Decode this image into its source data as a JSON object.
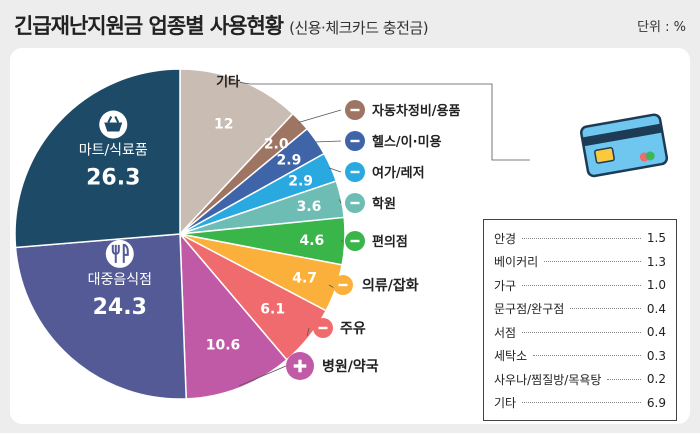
{
  "header": {
    "title": "긴급재난지원금 업종별 사용현황",
    "subtitle": "(신용·체크카드 충전금)",
    "unit": "단위 : %"
  },
  "colors": {
    "마트/식료품": "#1d4b67",
    "대중음식점": "#535a96",
    "병원/약국": "#c15aa6",
    "주유": "#ef6b6e",
    "의류/잡화": "#fbb03b",
    "편의점": "#39b54a",
    "학원": "#6dbdb5",
    "여가/레저": "#29a9e0",
    "헬스/이·미용": "#3f64a8",
    "자동차정비/용품": "#9e7462",
    "기타": "#c9bcb3"
  },
  "chart_data": {
    "type": "pie",
    "title": "긴급재난지원금 업종별 사용현황",
    "unit": "%",
    "slices": [
      {
        "label": "기타",
        "value": 12,
        "display": "12",
        "icon": ""
      },
      {
        "label": "자동차정비/용품",
        "value": 2.0,
        "display": "2.0",
        "icon": "wrench-screwdriver-icon"
      },
      {
        "label": "헬스/이·미용",
        "value": 2.9,
        "display": "2.9",
        "icon": "dumbbell-icon"
      },
      {
        "label": "여가/레저",
        "value": 2.9,
        "display": "2.9",
        "icon": "music-note-icon"
      },
      {
        "label": "학원",
        "value": 3.6,
        "display": "3.6",
        "icon": "book-icon"
      },
      {
        "label": "편의점",
        "value": 4.6,
        "display": "4.6",
        "icon": "store-icon"
      },
      {
        "label": "의류/잡화",
        "value": 4.7,
        "display": "4.7",
        "icon": "shirt-icon"
      },
      {
        "label": "주유",
        "value": 6.1,
        "display": "6.1",
        "icon": "fuel-pump-icon"
      },
      {
        "label": "병원/약국",
        "value": 10.6,
        "display": "10.6",
        "icon": "medical-cross-icon"
      },
      {
        "label": "대중음식점",
        "value": 24.3,
        "display": "24.3",
        "icon": "fork-knife-icon"
      },
      {
        "label": "마트/식료품",
        "value": 26.3,
        "display": "26.3",
        "icon": "shopping-basket-icon"
      }
    ],
    "other_breakdown": [
      {
        "label": "안경",
        "value": "1.5"
      },
      {
        "label": "베이커리",
        "value": "1.3"
      },
      {
        "label": "가구",
        "value": "1.0"
      },
      {
        "label": "문구점/완구점",
        "value": "0.4"
      },
      {
        "label": "서점",
        "value": "0.4"
      },
      {
        "label": "세탁소",
        "value": "0.3"
      },
      {
        "label": "사우나/찜질방/목욕탕",
        "value": "0.2"
      },
      {
        "label": "기타",
        "value": "6.9"
      }
    ]
  }
}
